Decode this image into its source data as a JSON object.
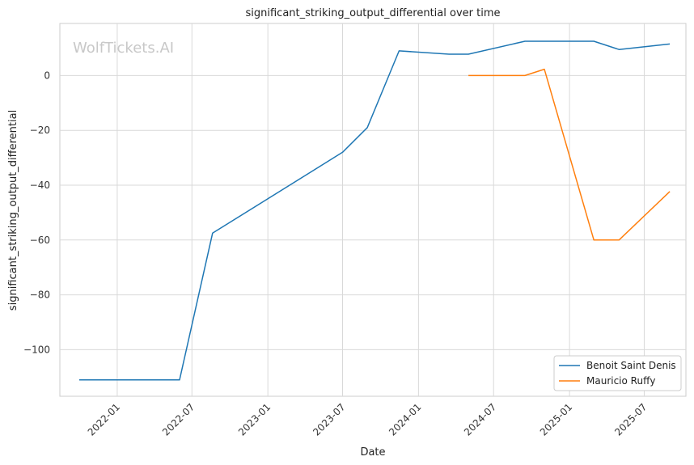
{
  "chart_data": {
    "type": "line",
    "title": "significant_striking_output_differential over time",
    "xlabel": "Date",
    "ylabel": "significant_striking_output_differential",
    "watermark": "WolfTickets.AI",
    "x_ticks": [
      "2022-01",
      "2022-07",
      "2023-01",
      "2023-07",
      "2024-01",
      "2024-07",
      "2025-01",
      "2025-07"
    ],
    "y_ticks": [
      0,
      -20,
      -40,
      -60,
      -80,
      -100
    ],
    "xlim": [
      "2021-08-15",
      "2025-10-10"
    ],
    "ylim": [
      -117,
      19
    ],
    "grid": true,
    "legend_position": "bottom-right",
    "series": [
      {
        "name": "Benoit Saint Denis",
        "color": "#1f77b4",
        "points": [
          [
            "2021-10-01",
            -111
          ],
          [
            "2022-06-01",
            -111
          ],
          [
            "2022-08-20",
            -57.5
          ],
          [
            "2023-07-01",
            -28
          ],
          [
            "2023-08-30",
            -19
          ],
          [
            "2023-11-15",
            9
          ],
          [
            "2024-03-15",
            7.8
          ],
          [
            "2024-05-01",
            7.8
          ],
          [
            "2024-09-15",
            12.5
          ],
          [
            "2025-03-01",
            12.5
          ],
          [
            "2025-05-01",
            9.5
          ],
          [
            "2025-09-01",
            11.5
          ]
        ]
      },
      {
        "name": "Mauricio Ruffy",
        "color": "#ff7f0e",
        "points": [
          [
            "2024-05-01",
            0
          ],
          [
            "2024-09-15",
            0
          ],
          [
            "2024-11-01",
            2.3
          ],
          [
            "2025-03-01",
            -60
          ],
          [
            "2025-05-01",
            -60
          ],
          [
            "2025-09-01",
            -42.3
          ]
        ]
      }
    ]
  }
}
